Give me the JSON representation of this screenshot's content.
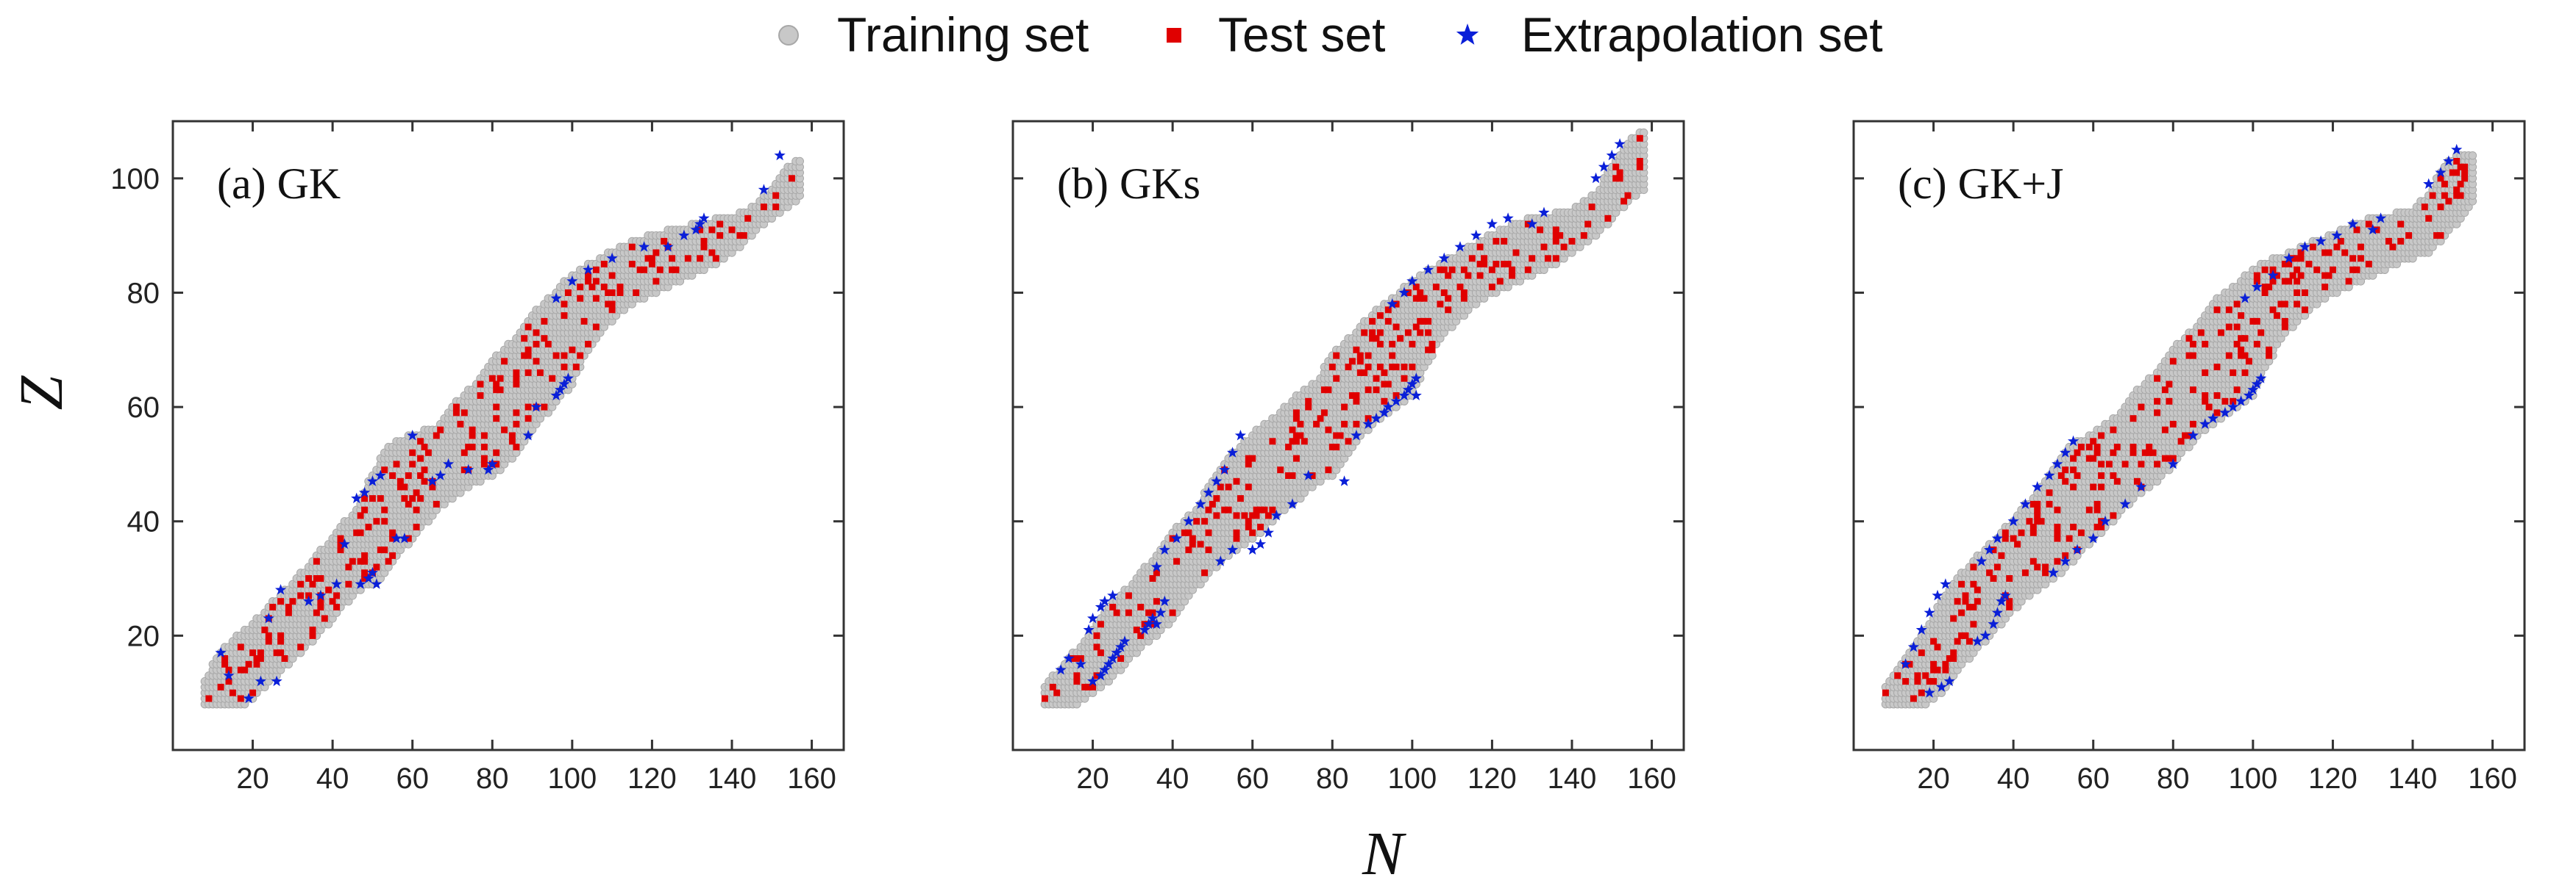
{
  "legend": {
    "training_label": "Training set",
    "test_label": "Test set",
    "extrapolation_label": "Extrapolation set"
  },
  "colors": {
    "training": "#c8c8c8",
    "training_edge": "#a8a8a8",
    "test": "#e00000",
    "extrapolation": "#0a1fd8"
  },
  "chart_data": [
    {
      "type": "scatter",
      "id": "a",
      "title": "(a) GK",
      "xlabel": "N",
      "ylabel": "Z",
      "xlim": [
        0,
        168
      ],
      "ylim": [
        0,
        110
      ],
      "xticks": [
        20,
        40,
        60,
        80,
        100,
        120,
        140,
        160
      ],
      "yticks": [
        20,
        40,
        60,
        80,
        100
      ],
      "series": [
        {
          "name": "Training set",
          "marker": "circle",
          "region": "nuclear chart N=8-157, Z=8-101"
        },
        {
          "name": "Test set",
          "marker": "square",
          "sample_fraction": 0.12,
          "seed": 11
        },
        {
          "name": "Extrapolation set",
          "marker": "star",
          "points": [
            [
              12,
              17
            ],
            [
              14,
              13
            ],
            [
              19,
              9
            ],
            [
              22,
              12
            ],
            [
              26,
              12
            ],
            [
              24,
              23
            ],
            [
              27,
              28
            ],
            [
              34,
              26
            ],
            [
              37,
              27
            ],
            [
              41,
              29
            ],
            [
              43,
              36
            ],
            [
              47,
              29
            ],
            [
              49,
              30
            ],
            [
              50,
              31
            ],
            [
              51,
              29
            ],
            [
              56,
              37
            ],
            [
              58,
              37
            ],
            [
              46,
              44
            ],
            [
              48,
              45
            ],
            [
              50,
              47
            ],
            [
              52,
              48
            ],
            [
              60,
              55
            ],
            [
              65,
              47
            ],
            [
              67,
              48
            ],
            [
              69,
              50
            ],
            [
              74,
              49
            ],
            [
              79,
              49
            ],
            [
              80,
              50
            ],
            [
              89,
              55
            ],
            [
              91,
              60
            ],
            [
              96,
              62
            ],
            [
              97,
              63
            ],
            [
              98,
              64
            ],
            [
              99,
              65
            ],
            [
              96,
              79
            ],
            [
              100,
              82
            ],
            [
              104,
              84
            ],
            [
              110,
              86
            ],
            [
              118,
              88
            ],
            [
              124,
              88
            ],
            [
              128,
              90
            ],
            [
              131,
              91
            ],
            [
              132,
              92
            ],
            [
              133,
              93
            ],
            [
              148,
              98
            ],
            [
              152,
              104
            ]
          ]
        }
      ]
    },
    {
      "type": "scatter",
      "id": "b",
      "title": "(b) GKs",
      "xlabel": "N",
      "ylabel": "Z",
      "xlim": [
        0,
        168
      ],
      "ylim": [
        0,
        110
      ],
      "xticks": [
        20,
        40,
        60,
        80,
        100,
        120,
        140,
        160
      ],
      "yticks": [
        20,
        40,
        60,
        80,
        100
      ],
      "series": [
        {
          "name": "Training set",
          "marker": "circle",
          "region": "nuclear chart N=8-158, Z=8-108"
        },
        {
          "name": "Test set",
          "marker": "square",
          "sample_fraction": 0.1,
          "seed": 23
        },
        {
          "name": "Extrapolation set",
          "marker": "star",
          "points": [
            [
              12,
              14
            ],
            [
              14,
              16
            ],
            [
              17,
              15
            ],
            [
              19,
              21
            ],
            [
              20,
              23
            ],
            [
              22,
              25
            ],
            [
              23,
              26
            ],
            [
              25,
              27
            ],
            [
              20,
              12
            ],
            [
              22,
              13
            ],
            [
              23,
              14
            ],
            [
              24,
              15
            ],
            [
              25,
              16
            ],
            [
              26,
              17
            ],
            [
              27,
              18
            ],
            [
              28,
              19
            ],
            [
              33,
              21
            ],
            [
              34,
              22
            ],
            [
              35,
              23
            ],
            [
              36,
              22
            ],
            [
              37,
              24
            ],
            [
              38,
              26
            ],
            [
              36,
              32
            ],
            [
              38,
              35
            ],
            [
              41,
              37
            ],
            [
              44,
              40
            ],
            [
              47,
              43
            ],
            [
              49,
              45
            ],
            [
              51,
              47
            ],
            [
              53,
              49
            ],
            [
              55,
              52
            ],
            [
              57,
              55
            ],
            [
              52,
              33
            ],
            [
              55,
              35
            ],
            [
              60,
              35
            ],
            [
              62,
              36
            ],
            [
              64,
              38
            ],
            [
              66,
              41
            ],
            [
              70,
              43
            ],
            [
              74,
              48
            ],
            [
              83,
              47
            ],
            [
              86,
              55
            ],
            [
              89,
              57
            ],
            [
              91,
              58
            ],
            [
              93,
              59
            ],
            [
              94,
              60
            ],
            [
              96,
              61
            ],
            [
              98,
              62
            ],
            [
              99,
              63
            ],
            [
              100,
              64
            ],
            [
              101,
              65
            ],
            [
              101,
              62
            ],
            [
              95,
              78
            ],
            [
              98,
              80
            ],
            [
              100,
              82
            ],
            [
              104,
              84
            ],
            [
              108,
              86
            ],
            [
              112,
              88
            ],
            [
              116,
              90
            ],
            [
              120,
              92
            ],
            [
              124,
              93
            ],
            [
              130,
              92
            ],
            [
              133,
              94
            ],
            [
              146,
              100
            ],
            [
              148,
              102
            ],
            [
              150,
              104
            ],
            [
              152,
              106
            ]
          ]
        }
      ]
    },
    {
      "type": "scatter",
      "id": "c",
      "title": "(c) GK+J",
      "xlabel": "N",
      "ylabel": "Z",
      "xlim": [
        0,
        168
      ],
      "ylim": [
        0,
        110
      ],
      "xticks": [
        20,
        40,
        60,
        80,
        100,
        120,
        140,
        160
      ],
      "yticks": [
        20,
        40,
        60,
        80,
        100
      ],
      "series": [
        {
          "name": "Training set",
          "marker": "circle",
          "region": "nuclear chart N=8-155, Z=8-104"
        },
        {
          "name": "Test set",
          "marker": "square",
          "sample_fraction": 0.13,
          "seed": 37
        },
        {
          "name": "Extrapolation set",
          "marker": "star",
          "points": [
            [
              13,
              15
            ],
            [
              15,
              18
            ],
            [
              17,
              21
            ],
            [
              19,
              24
            ],
            [
              21,
              27
            ],
            [
              23,
              29
            ],
            [
              19,
              10
            ],
            [
              22,
              11
            ],
            [
              24,
              12
            ],
            [
              31,
              19
            ],
            [
              33,
              20
            ],
            [
              35,
              22
            ],
            [
              36,
              24
            ],
            [
              37,
              26
            ],
            [
              38,
              27
            ],
            [
              32,
              33
            ],
            [
              34,
              35
            ],
            [
              36,
              37
            ],
            [
              40,
              40
            ],
            [
              43,
              43
            ],
            [
              46,
              46
            ],
            [
              49,
              48
            ],
            [
              51,
              50
            ],
            [
              53,
              52
            ],
            [
              55,
              54
            ],
            [
              50,
              31
            ],
            [
              53,
              33
            ],
            [
              56,
              35
            ],
            [
              60,
              37
            ],
            [
              63,
              40
            ],
            [
              68,
              43
            ],
            [
              72,
              46
            ],
            [
              80,
              50
            ],
            [
              85,
              55
            ],
            [
              88,
              57
            ],
            [
              90,
              58
            ],
            [
              93,
              59
            ],
            [
              95,
              60
            ],
            [
              97,
              61
            ],
            [
              99,
              62
            ],
            [
              100,
              63
            ],
            [
              101,
              64
            ],
            [
              102,
              65
            ],
            [
              98,
              79
            ],
            [
              101,
              81
            ],
            [
              105,
              83
            ],
            [
              109,
              86
            ],
            [
              113,
              88
            ],
            [
              117,
              89
            ],
            [
              121,
              90
            ],
            [
              125,
              92
            ],
            [
              130,
              91
            ],
            [
              132,
              93
            ],
            [
              144,
              99
            ],
            [
              147,
              101
            ],
            [
              149,
              103
            ],
            [
              151,
              105
            ]
          ]
        }
      ]
    }
  ]
}
